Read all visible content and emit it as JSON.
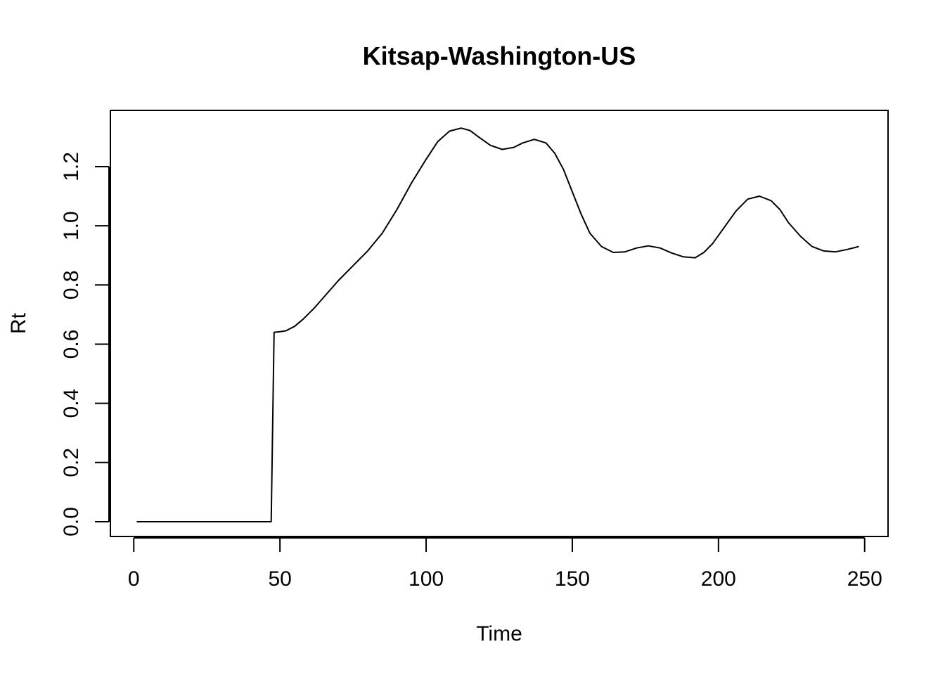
{
  "chart_data": {
    "type": "line",
    "title": "Kitsap-Washington-US",
    "xlabel": "Time",
    "ylabel": "Rt",
    "xlim": [
      -8,
      258
    ],
    "ylim": [
      -0.05,
      1.39
    ],
    "x_ticks": [
      0,
      50,
      100,
      150,
      200,
      250
    ],
    "y_ticks": [
      0.0,
      0.2,
      0.4,
      0.6,
      0.8,
      1.0,
      1.2
    ],
    "y_tick_labels": [
      "0.0",
      "0.2",
      "0.4",
      "0.6",
      "0.8",
      "1.0",
      "1.2"
    ],
    "grid": false,
    "line_color": "#000000",
    "series": [
      {
        "x": [
          1,
          10,
          20,
          30,
          40,
          47,
          48,
          50,
          52,
          55,
          58,
          62,
          66,
          70,
          75,
          80,
          85,
          90,
          95,
          100,
          104,
          108,
          112,
          115,
          118,
          122,
          126,
          130,
          133,
          137,
          141,
          144,
          147,
          150,
          153,
          156,
          160,
          164,
          168,
          172,
          176,
          180,
          184,
          188,
          192,
          195,
          198,
          202,
          206,
          210,
          214,
          218,
          221,
          224,
          228,
          232,
          236,
          240,
          244,
          248
        ],
        "y": [
          0.0,
          0.0,
          0.0,
          0.0,
          0.0,
          0.0,
          0.64,
          0.642,
          0.645,
          0.66,
          0.685,
          0.725,
          0.77,
          0.815,
          0.865,
          0.915,
          0.975,
          1.055,
          1.145,
          1.225,
          1.285,
          1.32,
          1.33,
          1.322,
          1.3,
          1.272,
          1.258,
          1.265,
          1.28,
          1.292,
          1.28,
          1.245,
          1.19,
          1.115,
          1.04,
          0.975,
          0.93,
          0.91,
          0.912,
          0.925,
          0.932,
          0.925,
          0.908,
          0.895,
          0.892,
          0.91,
          0.94,
          0.995,
          1.05,
          1.09,
          1.1,
          1.085,
          1.055,
          1.01,
          0.965,
          0.93,
          0.915,
          0.912,
          0.92,
          0.93
        ]
      }
    ]
  }
}
